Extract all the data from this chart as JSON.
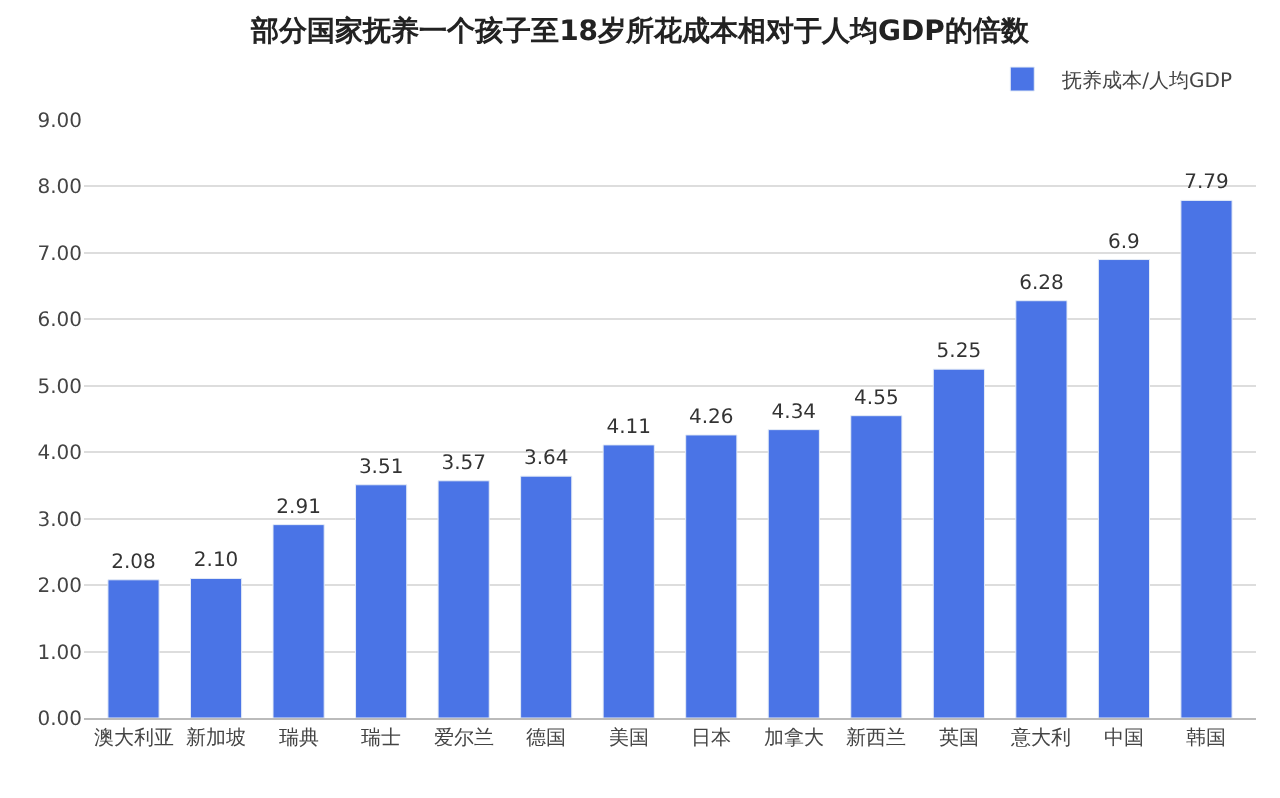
{
  "chart_data": {
    "type": "bar",
    "title": "部分国家抚养一个孩子至18岁所花成本相对于人均GDP的倍数",
    "categories": [
      "澳大利亚",
      "新加坡",
      "瑞典",
      "瑞士",
      "爱尔兰",
      "德国",
      "美国",
      "日本",
      "加拿大",
      "新西兰",
      "英国",
      "意大利",
      "中国",
      "韩国"
    ],
    "series": [
      {
        "name": "抚养成本/人均GDP",
        "color": "#4a74e6",
        "values": [
          2.08,
          2.1,
          2.91,
          3.51,
          3.57,
          3.64,
          4.11,
          4.26,
          4.34,
          4.55,
          5.25,
          6.28,
          6.9,
          7.79
        ],
        "value_labels": [
          "2.08",
          "2.10",
          "2.91",
          "3.51",
          "3.57",
          "3.64",
          "4.11",
          "4.26",
          "4.34",
          "4.55",
          "5.25",
          "6.28",
          "6.9",
          "7.79"
        ]
      }
    ],
    "ylim": [
      0,
      9
    ],
    "yticks": [
      {
        "value": 0,
        "label": "0.00"
      },
      {
        "value": 1,
        "label": "1.00"
      },
      {
        "value": 2,
        "label": "2.00"
      },
      {
        "value": 3,
        "label": "3.00"
      },
      {
        "value": 4,
        "label": "4.00"
      },
      {
        "value": 5,
        "label": "5.00"
      },
      {
        "value": 6,
        "label": "6.00"
      },
      {
        "value": 7,
        "label": "7.00"
      },
      {
        "value": 8,
        "label": "8.00"
      },
      {
        "value": 9,
        "label": "9.00"
      }
    ],
    "grid": "y",
    "legend": "top right"
  }
}
